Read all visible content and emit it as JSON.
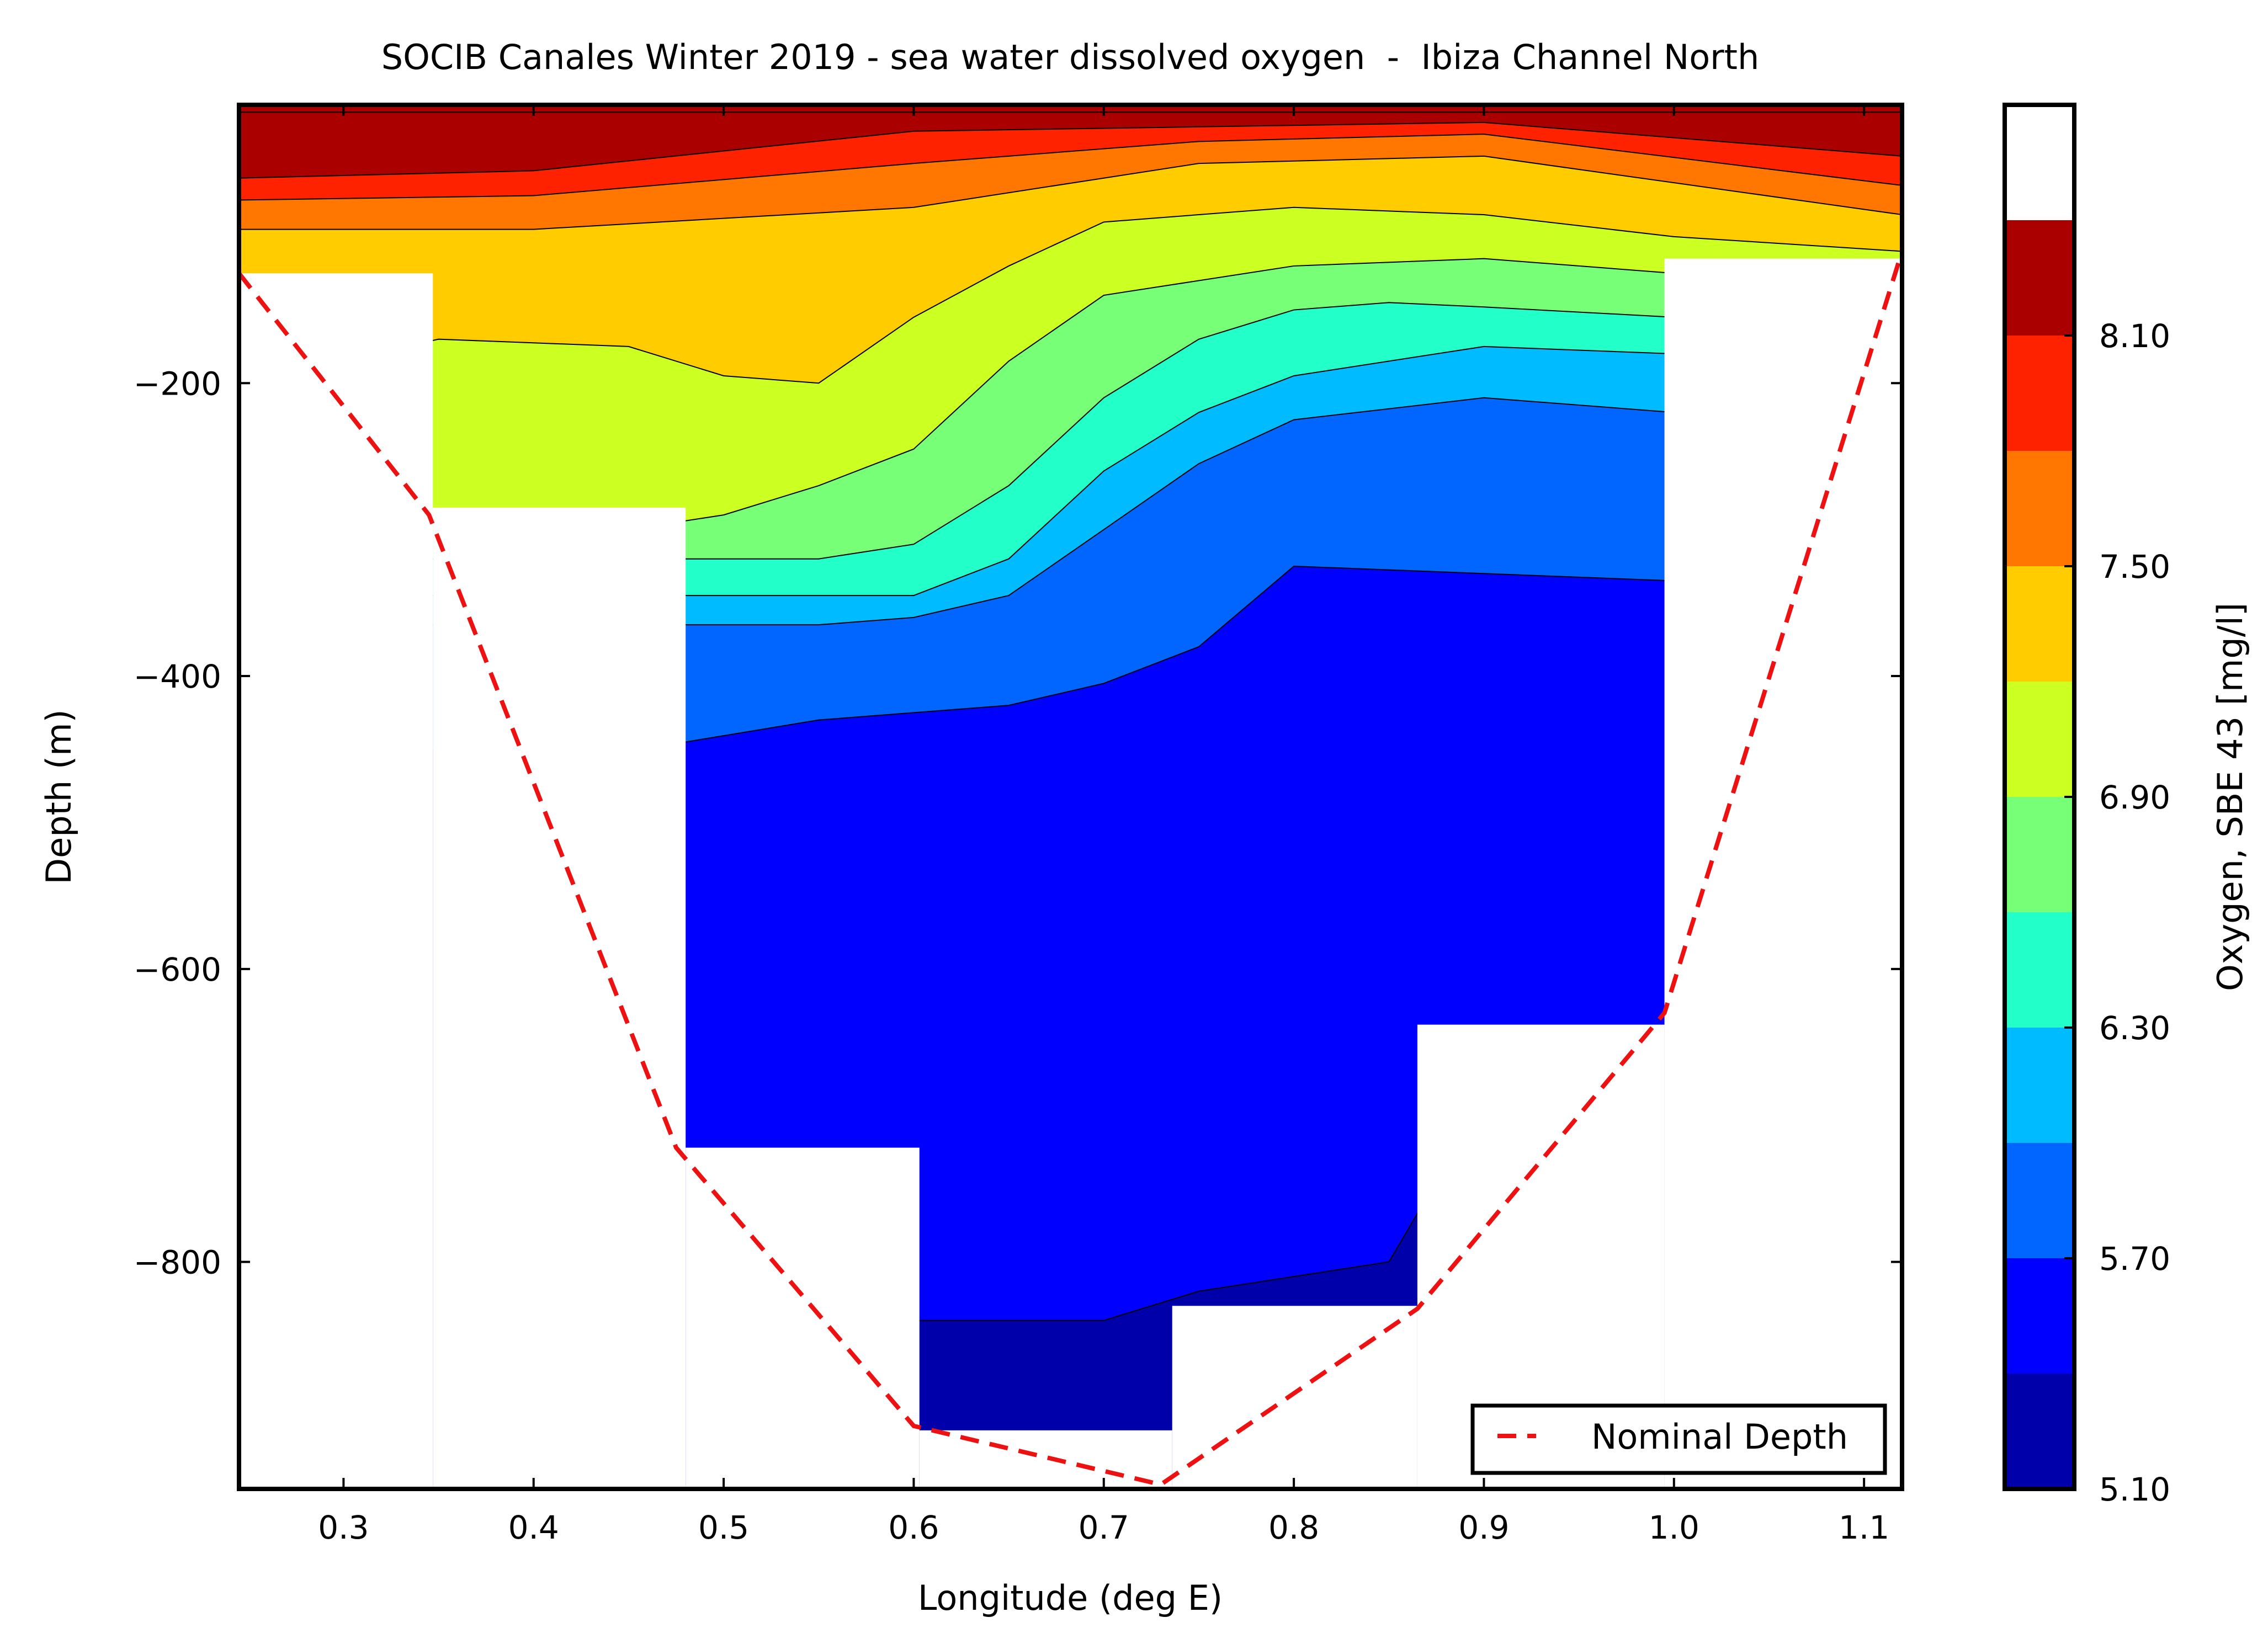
{
  "chart_data": {
    "type": "contour",
    "title": "SOCIB Canales Winter 2019 - sea water dissolved oxygen  -  Ibiza Channel North",
    "xlabel": "Longitude (deg E)",
    "ylabel": "Depth (m)",
    "xlim": [
      0.245,
      1.12
    ],
    "ylim": [
      -955,
      -10
    ],
    "xticks": [
      0.3,
      0.4,
      0.5,
      0.6,
      0.7,
      0.8,
      0.9,
      1.0,
      1.1
    ],
    "xtick_labels": [
      "0.3",
      "0.4",
      "0.5",
      "0.6",
      "0.7",
      "0.8",
      "0.9",
      "1.0",
      "1.1"
    ],
    "yticks": [
      -200,
      -400,
      -600,
      -800
    ],
    "ytick_labels": [
      "−200",
      "−400",
      "−600",
      "−800"
    ],
    "colorbar": {
      "label": "Oxygen, SBE 43 [mg/l]",
      "range": [
        5.1,
        8.7
      ],
      "levels": [
        5.1,
        5.4,
        5.7,
        6.0,
        6.3,
        6.6,
        6.9,
        7.2,
        7.5,
        7.8,
        8.1,
        8.4,
        8.7
      ],
      "tick_values": [
        5.1,
        5.7,
        6.3,
        6.9,
        7.5,
        8.1
      ],
      "tick_labels": [
        "5.10",
        "5.70",
        "6.30",
        "6.90",
        "7.50",
        "8.10"
      ],
      "colors": [
        "#0000aa",
        "#0000ff",
        "#0066ff",
        "#00bbff",
        "#22ffc8",
        "#77ff77",
        "#ccff22",
        "#ffcc00",
        "#ff7700",
        "#ff2200",
        "#aa0000"
      ]
    },
    "profiles": [
      {
        "x": [
          0.245,
          0.347
        ],
        "bottom": -125
      },
      {
        "x": [
          0.347,
          0.48
        ],
        "bottom": -285
      },
      {
        "x": [
          0.48,
          0.603
        ],
        "bottom": -722
      },
      {
        "x": [
          0.603,
          0.736
        ],
        "bottom": -915
      },
      {
        "x": [
          0.736,
          0.865
        ],
        "bottom": -830
      },
      {
        "x": [
          0.865,
          0.995
        ],
        "bottom": -638
      },
      {
        "x": [
          0.995,
          1.12
        ],
        "bottom": -115
      }
    ],
    "band_boundaries": [
      {
        "level": 8.4,
        "x": [
          0.245,
          0.4,
          0.6,
          0.75,
          0.9,
          1.12
        ],
        "depth": [
          -15,
          -15,
          -15,
          -15,
          -15,
          -15
        ]
      },
      {
        "level": 8.1,
        "x": [
          0.245,
          0.4,
          0.6,
          0.75,
          0.9,
          1.12
        ],
        "depth": [
          -60,
          -55,
          -28,
          -25,
          -22,
          -45
        ]
      },
      {
        "level": 7.8,
        "x": [
          0.245,
          0.4,
          0.6,
          0.75,
          0.9,
          1.12
        ],
        "depth": [
          -75,
          -72,
          -50,
          -35,
          -30,
          -65
        ]
      },
      {
        "level": 7.5,
        "x": [
          0.245,
          0.4,
          0.6,
          0.75,
          0.9,
          1.12
        ],
        "depth": [
          -95,
          -95,
          -80,
          -50,
          -45,
          -85
        ]
      },
      {
        "level": 7.2,
        "x": [
          0.245,
          0.35,
          0.45,
          0.5,
          0.55,
          0.6,
          0.65,
          0.7,
          0.8,
          0.9,
          1.0,
          1.12
        ],
        "depth": [
          -200,
          -170,
          -175,
          -195,
          -200,
          -155,
          -120,
          -90,
          -80,
          -85,
          -100,
          -110
        ]
      },
      {
        "level": 6.9,
        "x": [
          0.245,
          0.35,
          0.45,
          0.5,
          0.55,
          0.6,
          0.65,
          0.7,
          0.8,
          0.9,
          1.0,
          1.12
        ],
        "depth": [
          -300,
          -290,
          -300,
          -290,
          -270,
          -245,
          -185,
          -140,
          -120,
          -115,
          -125,
          -130
        ]
      },
      {
        "level": 6.6,
        "x": [
          0.245,
          0.48,
          0.55,
          0.6,
          0.65,
          0.7,
          0.75,
          0.8,
          0.85,
          0.9,
          1.0,
          1.12
        ],
        "depth": [
          -320,
          -320,
          -320,
          -310,
          -270,
          -210,
          -170,
          -150,
          -145,
          -148,
          -155,
          -160
        ]
      },
      {
        "level": 6.3,
        "x": [
          0.245,
          0.48,
          0.55,
          0.6,
          0.65,
          0.7,
          0.75,
          0.8,
          0.9,
          1.0,
          1.12
        ],
        "depth": [
          -345,
          -345,
          -345,
          -345,
          -320,
          -260,
          -220,
          -195,
          -175,
          -180,
          -185
        ]
      },
      {
        "level": 6.0,
        "x": [
          0.245,
          0.48,
          0.55,
          0.6,
          0.65,
          0.7,
          0.75,
          0.8,
          0.9,
          1.0,
          1.12
        ],
        "depth": [
          -365,
          -365,
          -365,
          -360,
          -345,
          -300,
          -255,
          -225,
          -210,
          -220,
          -230
        ]
      },
      {
        "level": 5.7,
        "x": [
          0.245,
          0.48,
          0.55,
          0.6,
          0.65,
          0.7,
          0.75,
          0.8,
          0.9,
          1.0,
          1.12
        ],
        "depth": [
          -455,
          -445,
          -430,
          -425,
          -420,
          -405,
          -380,
          -325,
          -330,
          -335,
          -340
        ]
      },
      {
        "level": 5.4,
        "x": [
          0.245,
          0.48,
          0.55,
          0.6,
          0.65,
          0.7,
          0.75,
          0.8,
          0.85,
          0.9,
          0.95,
          1.0,
          1.12
        ],
        "depth": [
          -1000,
          -1000,
          -1000,
          -840,
          -840,
          -840,
          -820,
          -810,
          -800,
          -690,
          -670,
          -660,
          -650
        ]
      }
    ],
    "nominal_depth": {
      "name": "Nominal Depth",
      "color": "#ee1111",
      "style": "dashed",
      "x": [
        0.245,
        0.345,
        0.475,
        0.6,
        0.73,
        0.865,
        0.995,
        1.12
      ],
      "depth": [
        -125,
        -290,
        -722,
        -912,
        -952,
        -832,
        -630,
        -110
      ]
    },
    "legend": {
      "placement": "bottom-right",
      "entries": [
        "Nominal Depth"
      ]
    },
    "grid": false
  }
}
